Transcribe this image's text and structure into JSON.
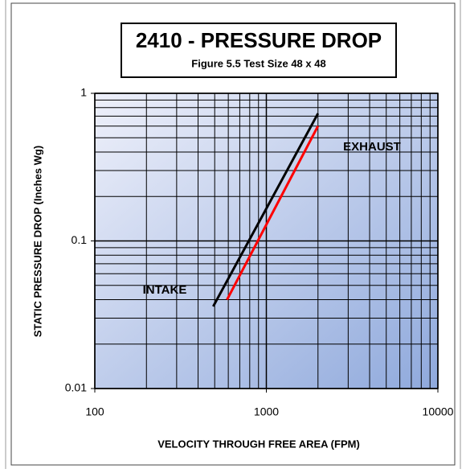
{
  "chart_data": {
    "type": "line",
    "title": "2410 - PRESSURE DROP",
    "subtitle": "Figure 5.5  Test Size 48 x 48",
    "x_label": "VELOCITY THROUGH FREE AREA (FPM)",
    "y_label": "STATIC PRESSURE DROP (Inches Wg)",
    "x_log": true,
    "y_log": true,
    "grid": true,
    "minor_grid": true,
    "xlim": [
      100,
      10000
    ],
    "xticks": [
      100,
      1000,
      10000
    ],
    "ylim": [
      0.01,
      1
    ],
    "yticks": [
      0.01,
      0.1,
      1
    ],
    "series": [
      {
        "name": "INTAKE",
        "color": "#000000",
        "x": [
          490,
          2000
        ],
        "values": [
          0.036,
          0.73
        ]
      },
      {
        "name": "EXHAUST",
        "color": "#ff0000",
        "x": [
          590,
          2000
        ],
        "values": [
          0.04,
          0.6
        ]
      }
    ]
  }
}
